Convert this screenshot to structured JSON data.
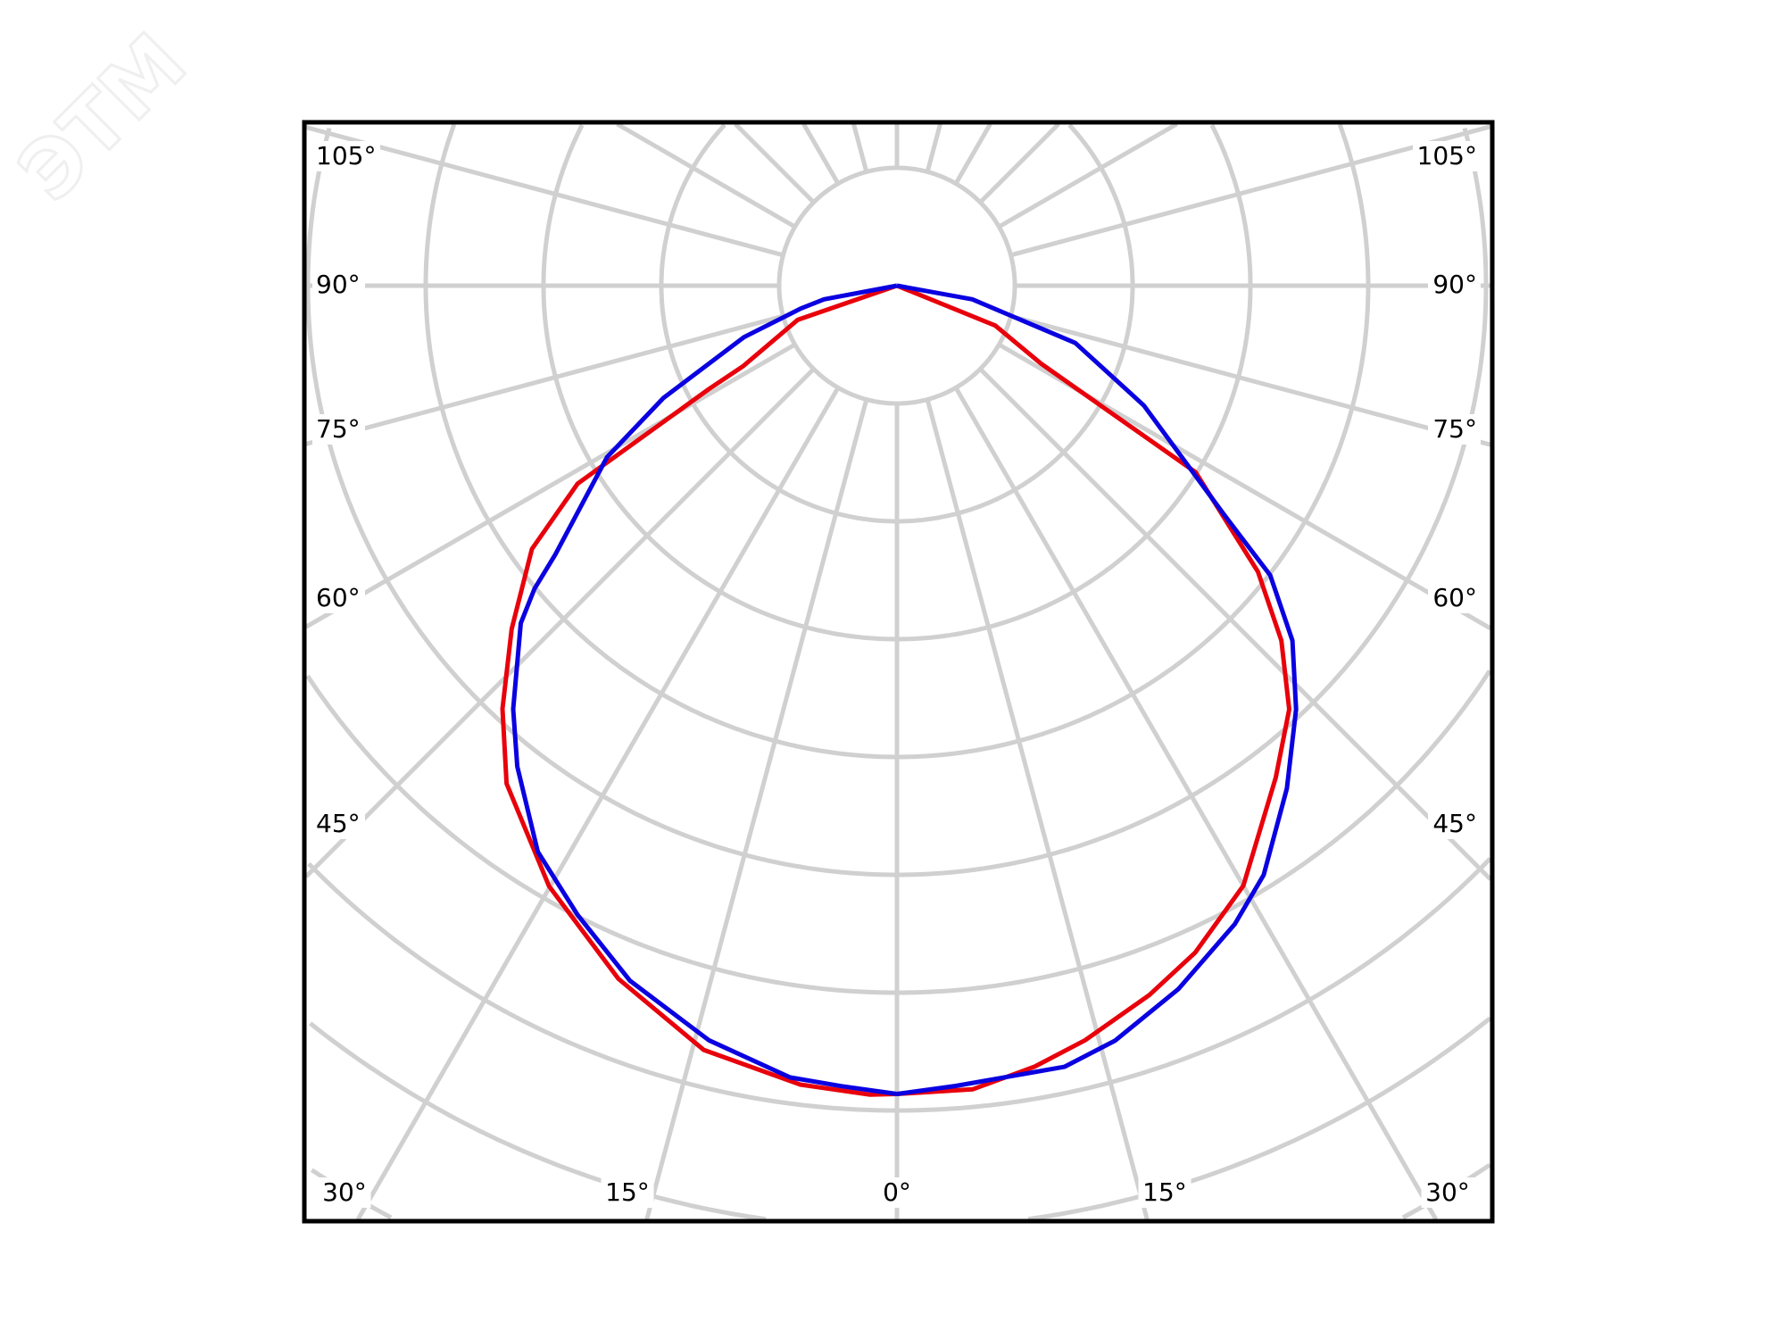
{
  "watermark": "ЭТМ",
  "chart_data": {
    "type": "polar-line",
    "title": "",
    "angle_zero": "down",
    "angle_step_deg": 15,
    "ring_count": 9,
    "grid": true,
    "grid_color": "#d0d0d0",
    "frame_color": "#000000",
    "left_labels": [
      "105°",
      "90°",
      "75°",
      "60°",
      "45°"
    ],
    "right_labels": [
      "105°",
      "90°",
      "75°",
      "60°",
      "45°"
    ],
    "bottom_labels": [
      "30°",
      "15°",
      "0°",
      "15°",
      "30°"
    ],
    "series": [
      {
        "color": "#e8000b",
        "angles": [
          -90,
          -71,
          -62.4,
          -61.2,
          -58.2,
          -54.2,
          -48.3,
          -43,
          -38.1,
          -30.1,
          -21.9,
          -14.2,
          -6.9,
          -1.9,
          0,
          5.4,
          10,
          14,
          19.6,
          24.1,
          30,
          37.6,
          42.8,
          47.3,
          51.6,
          58,
          61.6,
          67.9,
          90
        ],
        "values": [
          0,
          0.89,
          1.47,
          1.82,
          3.19,
          3.82,
          4.38,
          4.91,
          5.37,
          5.89,
          6.34,
          6.69,
          6.83,
          6.87,
          6.86,
          6.85,
          6.73,
          6.6,
          6.39,
          6.2,
          5.88,
          5.27,
          4.9,
          4.44,
          3.91,
          2.99,
          1.39,
          0.9,
          0
        ]
      },
      {
        "color": "#0a00e0",
        "angles": [
          -90,
          -79.4,
          -76.6,
          -71.4,
          -64.3,
          -59.4,
          -51.8,
          -50.1,
          -48.1,
          -42.2,
          -38.3,
          -32.4,
          -26.9,
          -21,
          -14,
          -7.7,
          -4,
          0,
          4.2,
          12.1,
          16.1,
          21.8,
          27.9,
          31.9,
          37.8,
          43.3,
          48.1,
          52.2,
          55,
          64.1,
          72.2,
          79.7,
          90
        ],
        "values": [
          0,
          0.63,
          0.84,
          1.37,
          2.2,
          2.86,
          3.69,
          4.01,
          4.29,
          4.85,
          5.2,
          5.69,
          5.99,
          6.32,
          6.6,
          6.78,
          6.81,
          6.86,
          6.81,
          6.78,
          6.67,
          6.43,
          6.13,
          5.89,
          5.4,
          4.94,
          4.51,
          4.01,
          3.39,
          2.33,
          1.59,
          0.65,
          0
        ]
      }
    ]
  }
}
